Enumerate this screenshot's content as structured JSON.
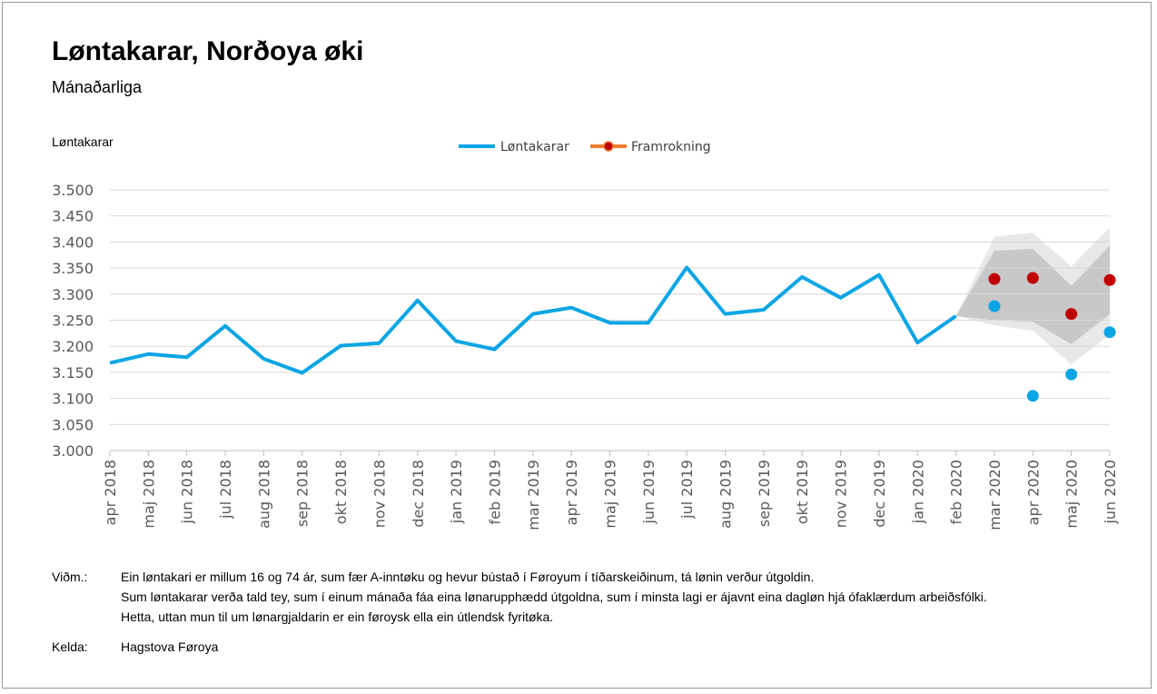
{
  "header": {
    "title": "Løntakarar, Norðoya øki",
    "subtitle": "Mánaðarliga"
  },
  "legend": {
    "series1": "Løntakarar",
    "series2": "Framrokning"
  },
  "notes": {
    "label": "Viðm.:",
    "lines": [
      "Ein løntakari er millum 16 og 74 ár, sum fær A-inntøku og hevur bústað í Føroyum í tíðarskeiðinum, tá lønin verður útgoldin.",
      "Sum løntakarar verða tald tey, sum í einum mánaða fáa eina lønarupphædd útgoldna, sum í minsta lagi er ájavnt eina dagløn hjá ófaklærdum arbeiðsfólki.",
      "Hetta, uttan mun til um lønargjaldarin er ein føroysk ella ein útlendsk fyritøka."
    ],
    "source_label": "Kelda:",
    "source": "Hagstova Føroya"
  },
  "colors": {
    "actual": "#0aa5e6",
    "forecast_point": "#c00000",
    "forecast_line": "#ed7d31",
    "band_outer": "#e8e8e8",
    "band_inner": "#c8c8c8",
    "grid": "#d9d9d9"
  },
  "chart_data": {
    "type": "line",
    "title": "Løntakarar, Norðoya øki",
    "subtitle": "Mánaðarliga",
    "ylabel": "Løntakarar",
    "ylim": [
      3000,
      3500
    ],
    "yticks": [
      3000,
      3050,
      3100,
      3150,
      3200,
      3250,
      3300,
      3350,
      3400,
      3450,
      3500
    ],
    "ytick_labels": [
      "3.000",
      "3.050",
      "3.100",
      "3.150",
      "3.200",
      "3.250",
      "3.300",
      "3.350",
      "3.400",
      "3.450",
      "3.500"
    ],
    "categories": [
      "apr 2018",
      "maj 2018",
      "jun 2018",
      "jul 2018",
      "aug 2018",
      "sep 2018",
      "okt 2018",
      "nov 2018",
      "dec 2018",
      "jan 2019",
      "feb 2019",
      "mar 2019",
      "apr 2019",
      "maj 2019",
      "jun 2019",
      "jul 2019",
      "aug 2019",
      "sep 2019",
      "okt 2019",
      "nov 2019",
      "dec 2019",
      "jan 2020",
      "feb 2020",
      "mar 2020",
      "apr 2020",
      "maj 2020",
      "jun 2020"
    ],
    "grid": true,
    "legend_position": "top",
    "series": [
      {
        "name": "Løntakarar",
        "values": [
          3168,
          3185,
          3179,
          3239,
          3176,
          3149,
          3201,
          3206,
          3288,
          3210,
          3194,
          3262,
          3274,
          3245,
          3245,
          3351,
          3262,
          3270,
          3333,
          3293,
          3337,
          3207,
          3258,
          null,
          null,
          null,
          null
        ]
      },
      {
        "name": "Framrokning",
        "values": [
          null,
          null,
          null,
          null,
          null,
          null,
          null,
          null,
          null,
          null,
          null,
          null,
          null,
          null,
          null,
          null,
          null,
          null,
          null,
          null,
          null,
          null,
          null,
          3329,
          3331,
          3262,
          3327
        ]
      }
    ],
    "actual_later_points": {
      "categories": [
        "mar 2020",
        "apr 2020",
        "maj 2020",
        "jun 2020"
      ],
      "values": [
        3277,
        3105,
        3146,
        3227
      ]
    },
    "forecast_band_outer": {
      "categories": [
        "feb 2020",
        "mar 2020",
        "apr 2020",
        "maj 2020",
        "jun 2020"
      ],
      "upper": [
        3258,
        3410,
        3418,
        3353,
        3428
      ],
      "lower": [
        3258,
        3240,
        3230,
        3165,
        3222
      ]
    },
    "forecast_band_inner": {
      "categories": [
        "feb 2020",
        "mar 2020",
        "apr 2020",
        "maj 2020",
        "jun 2020"
      ],
      "upper": [
        3258,
        3383,
        3387,
        3316,
        3393
      ],
      "lower": [
        3258,
        3250,
        3247,
        3204,
        3262
      ]
    }
  }
}
